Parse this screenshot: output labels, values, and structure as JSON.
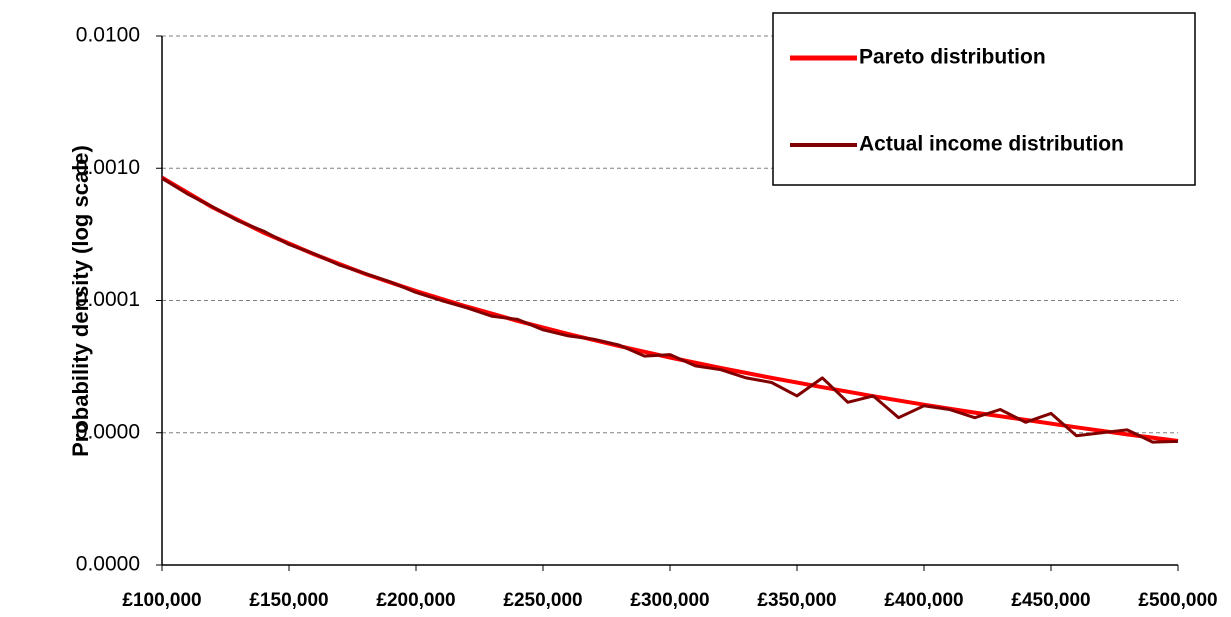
{
  "chart_data": {
    "type": "line",
    "y_label": "Probability density (log scale)",
    "log_y": true,
    "grid": true,
    "legend_position": "top-right",
    "xlim": [
      100000,
      500000
    ],
    "xticks": [
      {
        "value": 100000,
        "label": "£100,000"
      },
      {
        "value": 150000,
        "label": "£150,000"
      },
      {
        "value": 200000,
        "label": "£200,000"
      },
      {
        "value": 250000,
        "label": "£250,000"
      },
      {
        "value": 300000,
        "label": "£300,000"
      },
      {
        "value": 350000,
        "label": "£350,000"
      },
      {
        "value": 400000,
        "label": "£400,000"
      },
      {
        "value": 450000,
        "label": "£450,000"
      },
      {
        "value": 500000,
        "label": "£500,000"
      }
    ],
    "ylim": [
      1e-06,
      0.01
    ],
    "yticks": [
      {
        "value": 1e-06,
        "label": "0.0000"
      },
      {
        "value": 1e-05,
        "label": "0.0000"
      },
      {
        "value": 0.0001,
        "label": "0.0001"
      },
      {
        "value": 0.001,
        "label": "0.0010"
      },
      {
        "value": 0.01,
        "label": "0.0100"
      }
    ],
    "series": [
      {
        "name": "Pareto distribution",
        "color": "#ff0000",
        "width": 4,
        "x": [
          100000,
          120000,
          140000,
          160000,
          180000,
          200000,
          220000,
          240000,
          260000,
          280000,
          300000,
          320000,
          340000,
          360000,
          380000,
          400000,
          420000,
          440000,
          460000,
          480000,
          500000
        ],
        "values": [
          0.00085,
          0.000505,
          0.000326,
          0.000223,
          0.000159,
          0.000118,
          8.99e-05,
          7.01e-05,
          5.58e-05,
          4.52e-05,
          3.71e-05,
          3.09e-05,
          2.6e-05,
          2.21e-05,
          1.89e-05,
          1.63e-05,
          1.42e-05,
          1.25e-05,
          1.1e-05,
          9.72e-06,
          8.66e-06
        ]
      },
      {
        "name": "Actual income distribution",
        "color": "#800000",
        "width": 3,
        "x": [
          100000,
          110000,
          120000,
          130000,
          140000,
          150000,
          160000,
          170000,
          180000,
          190000,
          200000,
          210000,
          220000,
          230000,
          240000,
          250000,
          260000,
          270000,
          280000,
          290000,
          300000,
          310000,
          320000,
          330000,
          340000,
          350000,
          360000,
          370000,
          380000,
          390000,
          400000,
          410000,
          420000,
          430000,
          440000,
          450000,
          460000,
          470000,
          480000,
          490000,
          500000
        ],
        "values": [
          0.00084,
          0.00064,
          0.00051,
          0.0004,
          0.000335,
          0.000265,
          0.000225,
          0.000185,
          0.00016,
          0.000138,
          0.000115,
          0.0001,
          8.8e-05,
          7.6e-05,
          7.2e-05,
          6e-05,
          5.4e-05,
          5.1e-05,
          4.6e-05,
          3.8e-05,
          3.9e-05,
          3.2e-05,
          3e-05,
          2.6e-05,
          2.4e-05,
          1.9e-05,
          2.6e-05,
          1.7e-05,
          1.9e-05,
          1.3e-05,
          1.6e-05,
          1.5e-05,
          1.3e-05,
          1.5e-05,
          1.2e-05,
          1.4e-05,
          9.5e-06,
          1e-05,
          1.05e-05,
          8.5e-06,
          8.6e-06
        ]
      }
    ]
  }
}
